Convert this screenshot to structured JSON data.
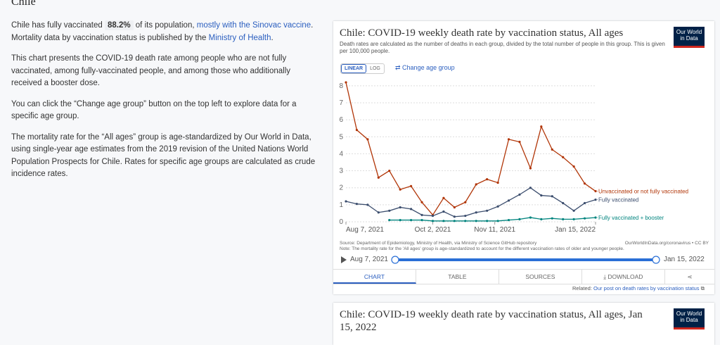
{
  "page": {
    "heading": "Chile",
    "intro": {
      "before": "Chile has fully vaccinated",
      "badge": "88.2%",
      "after": "of its population,",
      "link1": "mostly with the Sinovac vaccine",
      "mid": ". Mortality data by vaccination status is published by the",
      "link2": "Ministry of Health",
      "end": "."
    },
    "paragraphs": [
      "This chart presents the COVID-19 death rate among people who are not fully vaccinated, among fully-vaccinated people, and among those who additionally received a booster dose.",
      "You can click the “Change age group” button on the top left to explore data for a specific age group.",
      "The mortality rate for the “All ages” group is age-standardized by Our World in Data, using single-year age estimates from the 2019 revision of the United Nations World Population Prospects for Chile. Rates for specific age groups are calculated as crude incidence rates."
    ],
    "logo": [
      "Our World",
      "in Data"
    ],
    "scale_buttons": [
      "LINEAR",
      "LOG"
    ],
    "change_age": "Change age group",
    "source": "Source: Department of Epidemiology, Ministry of Health, via Ministry of Science GitHub repository",
    "credit": "OurWorldInData.org/coronavirus • CC BY",
    "note": "Note: The mortality rate for the 'All ages' group is age-standardized to account for the different vaccination rates of older and younger people.",
    "timeline": {
      "start": "Aug 7, 2021",
      "end": "Jan 15, 2022"
    },
    "tabs": [
      "CHART",
      "TABLE",
      "SOURCES",
      "DOWNLOAD"
    ],
    "related": {
      "label": "Related:",
      "link": "Our post on death rates by vaccination status"
    },
    "next_card_title": "Chile: COVID-19 weekly death rate by vaccination status, All ages, Jan 15, 2022"
  },
  "chart_data": {
    "type": "line",
    "title": "Chile: COVID-19 weekly death rate by vaccination status, All ages",
    "subtitle": "Death rates are calculated as the number of deaths in each group, divided by the total number of people in this group. This is given per 100,000 people.",
    "x": [
      "2021-08-07",
      "2021-08-14",
      "2021-08-21",
      "2021-08-28",
      "2021-09-04",
      "2021-09-11",
      "2021-09-18",
      "2021-09-25",
      "2021-10-02",
      "2021-10-09",
      "2021-10-16",
      "2021-10-23",
      "2021-10-30",
      "2021-11-06",
      "2021-11-13",
      "2021-11-20",
      "2021-11-27",
      "2021-12-04",
      "2021-12-11",
      "2021-12-18",
      "2021-12-25",
      "2022-01-01",
      "2022-01-08",
      "2022-01-15"
    ],
    "xlim": [
      "2021-08-07",
      "2022-01-15"
    ],
    "xticks": [
      {
        "value": "2021-08-07",
        "label": "Aug 7, 2021"
      },
      {
        "value": "2021-10-02",
        "label": "Oct 2, 2021"
      },
      {
        "value": "2021-11-11",
        "label": "Nov 11, 2021"
      },
      {
        "value": "2022-01-15",
        "label": "Jan 15, 2022"
      }
    ],
    "ylim": [
      0,
      8.2
    ],
    "yticks": [
      0,
      1,
      2,
      3,
      4,
      5,
      6,
      7,
      8
    ],
    "grid": true,
    "log_scale": false,
    "series": [
      {
        "name": "Unvaccinated or not fully vaccinated",
        "color": "#b13507",
        "values": [
          8.2,
          5.4,
          4.85,
          2.6,
          3.0,
          1.9,
          2.1,
          1.15,
          0.4,
          1.4,
          0.85,
          1.15,
          2.2,
          2.5,
          2.3,
          4.85,
          4.7,
          3.15,
          5.6,
          4.25,
          3.8,
          3.25,
          2.25,
          1.8
        ]
      },
      {
        "name": "Fully vaccinated",
        "color": "#3c4e6e",
        "values": [
          1.2,
          1.05,
          1.0,
          0.55,
          0.65,
          0.85,
          0.75,
          0.4,
          0.35,
          0.6,
          0.3,
          0.35,
          0.55,
          0.65,
          0.9,
          1.25,
          1.6,
          2.0,
          1.55,
          1.5,
          1.1,
          0.65,
          1.1,
          1.3
        ]
      },
      {
        "name": "Fully vaccinated + booster",
        "color": "#00847e",
        "values": [
          null,
          null,
          null,
          null,
          0.1,
          0.1,
          0.1,
          0.1,
          0.05,
          0.05,
          0.05,
          0.05,
          0.05,
          0.05,
          0.05,
          0.1,
          0.15,
          0.25,
          0.15,
          0.2,
          0.15,
          0.15,
          0.2,
          0.25
        ]
      }
    ]
  }
}
